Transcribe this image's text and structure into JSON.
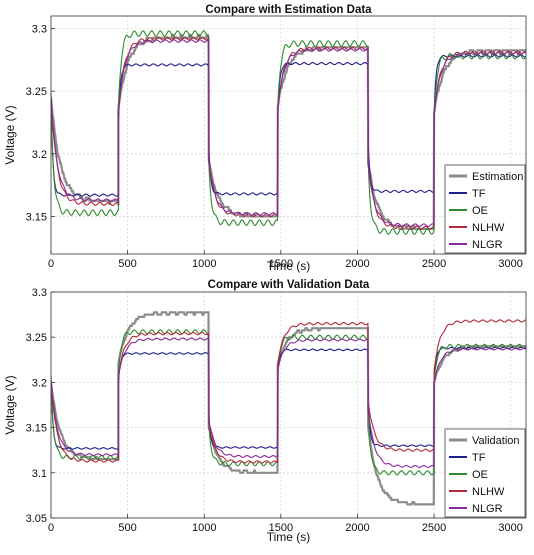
{
  "colors": {
    "estimation": "#8c8c8c",
    "validation": "#8c8c8c",
    "tf": "#1e1e8c",
    "oe": "#2e8b2e",
    "nlhw": "#b2283a",
    "nlgr": "#8a2a9a"
  },
  "chart_data": [
    {
      "type": "line",
      "title": "Compare with Estimation Data",
      "xlabel": "Time (s)",
      "ylabel": "Voltage (V)",
      "xlim": [
        0,
        3100
      ],
      "ylim": [
        3.12,
        3.31
      ],
      "xticks": [
        0,
        500,
        1000,
        1500,
        2000,
        2500,
        3000
      ],
      "yticks": [
        3.15,
        3.2,
        3.25,
        3.3
      ],
      "ytick_labels": [
        "3.15",
        "3.2",
        "3.25",
        "3.3"
      ],
      "grid": true,
      "legend_position": "bottom-right",
      "legend": [
        "Estimation",
        "TF",
        "OE",
        "NLHW",
        "NLGR"
      ],
      "periods": [
        {
          "start": 0,
          "end": 440,
          "from": 3.245,
          "level": 3.162
        },
        {
          "start": 440,
          "end": 1030,
          "from": 3.235,
          "level": 3.293
        },
        {
          "start": 1030,
          "end": 1480,
          "from": 3.195,
          "level": 3.15
        },
        {
          "start": 1480,
          "end": 2070,
          "from": 3.237,
          "level": 3.285
        },
        {
          "start": 2070,
          "end": 2500,
          "from": 3.193,
          "level": 3.14
        },
        {
          "start": 2500,
          "end": 3100,
          "from": 3.232,
          "level": 3.282
        }
      ],
      "series": [
        {
          "name": "Estimation",
          "levels": [
            3.162,
            3.293,
            3.15,
            3.285,
            3.14,
            3.282
          ]
        },
        {
          "name": "TF",
          "levels": [
            3.167,
            3.271,
            3.168,
            3.272,
            3.17,
            3.278
          ]
        },
        {
          "name": "OE",
          "levels": [
            3.153,
            3.296,
            3.145,
            3.288,
            3.138,
            3.278
          ]
        },
        {
          "name": "NLHW",
          "levels": [
            3.16,
            3.292,
            3.151,
            3.284,
            3.141,
            3.281
          ]
        },
        {
          "name": "NLGR",
          "levels": [
            3.163,
            3.29,
            3.152,
            3.283,
            3.143,
            3.28
          ]
        }
      ]
    },
    {
      "type": "line",
      "title": "Compare with Validation Data",
      "xlabel": "Time (s)",
      "ylabel": "Voltage (V)",
      "xlim": [
        0,
        3100
      ],
      "ylim": [
        3.05,
        3.3
      ],
      "xticks": [
        0,
        500,
        1000,
        1500,
        2000,
        2500,
        3000
      ],
      "yticks": [
        3.05,
        3.1,
        3.15,
        3.2,
        3.25,
        3.3
      ],
      "ytick_labels": [
        "3.05",
        "3.1",
        "3.15",
        "3.2",
        "3.25",
        "3.3"
      ],
      "grid": true,
      "legend_position": "bottom-right",
      "legend": [
        "Validation",
        "TF",
        "OE",
        "NLHW",
        "NLGR"
      ],
      "periods": [
        {
          "start": 0,
          "end": 440,
          "from": 3.2,
          "level": 3.115
        },
        {
          "start": 440,
          "end": 1030,
          "from": 3.22,
          "level": 3.277
        },
        {
          "start": 1030,
          "end": 1480,
          "from": 3.15,
          "level": 3.1
        },
        {
          "start": 1480,
          "end": 2070,
          "from": 3.22,
          "level": 3.26
        },
        {
          "start": 2070,
          "end": 2500,
          "from": 3.15,
          "level": 3.065
        },
        {
          "start": 2500,
          "end": 3100,
          "from": 3.2,
          "level": 3.24
        }
      ],
      "series": [
        {
          "name": "Validation",
          "levels": [
            3.115,
            3.277,
            3.1,
            3.26,
            3.065,
            3.24
          ]
        },
        {
          "name": "TF",
          "levels": [
            3.127,
            3.232,
            3.128,
            3.236,
            3.13,
            3.238
          ]
        },
        {
          "name": "OE",
          "levels": [
            3.117,
            3.256,
            3.11,
            3.25,
            3.1,
            3.24
          ]
        },
        {
          "name": "NLHW",
          "levels": [
            3.113,
            3.254,
            3.112,
            3.265,
            3.125,
            3.268
          ]
        },
        {
          "name": "NLGR",
          "levels": [
            3.12,
            3.248,
            3.118,
            3.247,
            3.107,
            3.237
          ]
        }
      ]
    }
  ]
}
